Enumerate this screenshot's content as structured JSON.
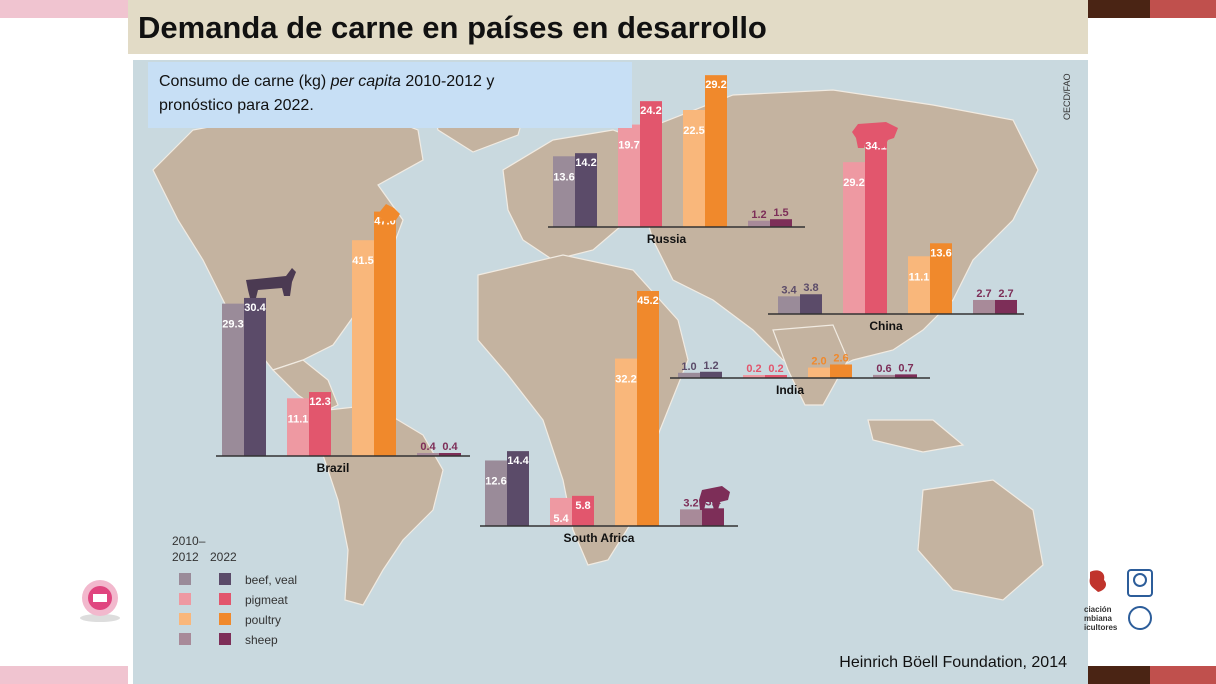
{
  "slide": {
    "title": "Demanda de carne en países en desarrollo",
    "subtitle_line1_a": "Consumo de carne  (kg) ",
    "subtitle_line1_b": "per capita",
    "subtitle_line1_c": " 2010-2012  y",
    "subtitle_line2": "pronóstico para 2022.",
    "credit": "Heinrich Böell Foundation, 2014",
    "map_source": "OECD/FAO",
    "right_logo_text": [
      "ciación",
      "mbiana",
      "icultores"
    ]
  },
  "colors": {
    "ocean": "#c9d9df",
    "land": "#c4b3a0",
    "title_bg": "#e2dbc6",
    "subtitle_bg": "#c7dff5",
    "beef_2012": "#9a8b99",
    "beef_2022": "#5b4b69",
    "pig_2012": "#ee99a2",
    "pig_2022": "#e2566d",
    "poultry_2012": "#f9b77b",
    "poultry_2022": "#f0892c",
    "sheep_2012": "#a88a99",
    "sheep_2022": "#7d2e58",
    "accent_pink": "#f0c4d0",
    "accent_brown": "#4a2414",
    "accent_red": "#c0504d"
  },
  "legend": {
    "header_a": "2010–",
    "header_b": "2012",
    "header_c": "2022",
    "items": [
      "beef, veal",
      "pigmeat",
      "poultry",
      "sheep"
    ]
  },
  "chart_data": [
    {
      "type": "bar",
      "title": "Brazil",
      "categories": [
        "beef, veal",
        "pigmeat",
        "poultry",
        "sheep"
      ],
      "series": [
        {
          "name": "2010–2012",
          "values": [
            29.3,
            11.1,
            41.5,
            0.4
          ]
        },
        {
          "name": "2022",
          "values": [
            30.4,
            12.3,
            47.0,
            0.4
          ]
        }
      ]
    },
    {
      "type": "bar",
      "title": "Russia",
      "categories": [
        "beef, veal",
        "pigmeat",
        "poultry",
        "sheep"
      ],
      "series": [
        {
          "name": "2010–2012",
          "values": [
            13.6,
            19.7,
            22.5,
            1.2
          ]
        },
        {
          "name": "2022",
          "values": [
            14.2,
            24.2,
            29.2,
            1.5
          ]
        }
      ]
    },
    {
      "type": "bar",
      "title": "China",
      "categories": [
        "beef, veal",
        "pigmeat",
        "poultry",
        "sheep"
      ],
      "series": [
        {
          "name": "2010–2012",
          "values": [
            3.4,
            29.2,
            11.1,
            2.7
          ]
        },
        {
          "name": "2022",
          "values": [
            3.8,
            34.1,
            13.6,
            2.7
          ]
        }
      ]
    },
    {
      "type": "bar",
      "title": "India",
      "categories": [
        "beef, veal",
        "pigmeat",
        "poultry",
        "sheep"
      ],
      "series": [
        {
          "name": "2010–2012",
          "values": [
            1.0,
            0.2,
            2.0,
            0.6
          ]
        },
        {
          "name": "2022",
          "values": [
            1.2,
            0.2,
            2.6,
            0.7
          ]
        }
      ]
    },
    {
      "type": "bar",
      "title": "South Africa",
      "categories": [
        "beef, veal",
        "pigmeat",
        "poultry",
        "sheep"
      ],
      "series": [
        {
          "name": "2010–2012",
          "values": [
            12.6,
            5.4,
            32.2,
            3.2
          ]
        },
        {
          "name": "2022",
          "values": [
            14.4,
            5.8,
            45.2,
            3.4
          ]
        }
      ]
    }
  ]
}
